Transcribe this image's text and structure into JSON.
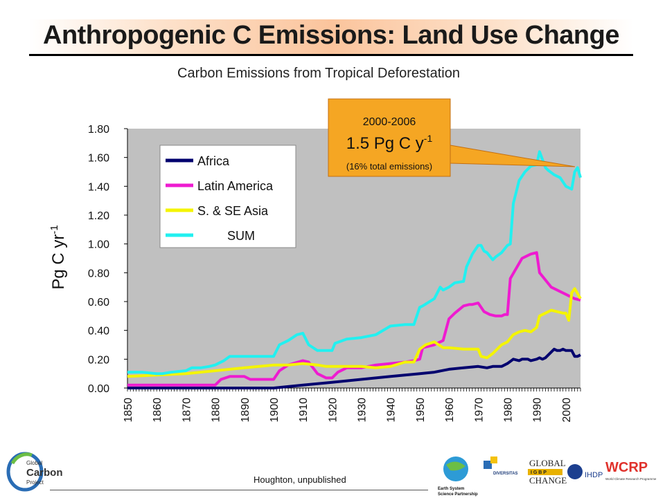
{
  "slide": {
    "title": "Anthropogenic C Emissions: Land Use Change",
    "source": "Houghton, unpublished"
  },
  "callout": {
    "period": "2000-2006",
    "value": "1.5 Pg C y",
    "value_sup": "-1",
    "note": "(16% total emissions)",
    "color": "#f5a623"
  },
  "logos": {
    "gcp_line1": "Global",
    "gcp_line2": "Carbon",
    "gcp_line3": "Project",
    "essp_line1": "Earth System",
    "essp_line2": "Science Partnership",
    "diversitas": "DIVERSITAS",
    "global_change_1": "GLOBAL",
    "global_change_2": "CHANGE",
    "igbp": "I G B P",
    "ihdp": "IHDP",
    "wcrp": "WCRP",
    "wcrp_sub": "World Climate Research Programme"
  },
  "chart_data": {
    "type": "line",
    "title": "Carbon Emissions from Tropical Deforestation",
    "ylabel": "Pg C yr",
    "ylabel_sup": "-1",
    "xlim": [
      1850,
      2005
    ],
    "ylim": [
      0,
      1.8
    ],
    "yticks": [
      "0.00",
      "0.20",
      "0.40",
      "0.60",
      "0.80",
      "1.00",
      "1.20",
      "1.40",
      "1.60",
      "1.80"
    ],
    "xticks": [
      "1850",
      "1860",
      "1870",
      "1880",
      "1890",
      "1900",
      "1910",
      "1920",
      "1930",
      "1940",
      "1950",
      "1960",
      "1970",
      "1980",
      "1990",
      "2000"
    ],
    "grid": false,
    "plot_background": "#c0c0c0",
    "legend_position": "top-left",
    "series": [
      {
        "name": "Africa",
        "color": "#00006e",
        "x": [
          1850,
          1900,
          1905,
          1910,
          1915,
          1920,
          1925,
          1930,
          1935,
          1940,
          1945,
          1950,
          1955,
          1960,
          1965,
          1970,
          1973,
          1975,
          1978,
          1980,
          1982,
          1984,
          1985,
          1987,
          1988,
          1990,
          1991,
          1992,
          1993,
          1995,
          1996,
          1997,
          1998,
          1999,
          2000,
          2002,
          2003,
          2004,
          2005
        ],
        "y": [
          0.0,
          0.0,
          0.01,
          0.02,
          0.03,
          0.04,
          0.05,
          0.06,
          0.07,
          0.08,
          0.09,
          0.1,
          0.11,
          0.13,
          0.14,
          0.15,
          0.14,
          0.15,
          0.15,
          0.17,
          0.2,
          0.19,
          0.2,
          0.2,
          0.19,
          0.2,
          0.21,
          0.2,
          0.21,
          0.25,
          0.27,
          0.26,
          0.26,
          0.27,
          0.26,
          0.26,
          0.22,
          0.22,
          0.23
        ]
      },
      {
        "name": "Latin America",
        "color": "#ee1bd0",
        "x": [
          1850,
          1880,
          1882,
          1885,
          1890,
          1892,
          1895,
          1900,
          1902,
          1905,
          1910,
          1912,
          1915,
          1918,
          1920,
          1922,
          1925,
          1930,
          1935,
          1940,
          1945,
          1948,
          1950,
          1951,
          1955,
          1957,
          1958,
          1960,
          1962,
          1965,
          1967,
          1968,
          1970,
          1972,
          1974,
          1976,
          1978,
          1979,
          1980,
          1981,
          1985,
          1988,
          1990,
          1991,
          1995,
          2000,
          2002,
          2003,
          2005
        ],
        "y": [
          0.02,
          0.02,
          0.06,
          0.08,
          0.08,
          0.06,
          0.06,
          0.06,
          0.12,
          0.16,
          0.19,
          0.18,
          0.1,
          0.07,
          0.07,
          0.11,
          0.14,
          0.14,
          0.16,
          0.17,
          0.18,
          0.19,
          0.2,
          0.28,
          0.3,
          0.32,
          0.33,
          0.48,
          0.52,
          0.57,
          0.58,
          0.58,
          0.59,
          0.53,
          0.51,
          0.5,
          0.5,
          0.51,
          0.51,
          0.76,
          0.9,
          0.93,
          0.94,
          0.8,
          0.7,
          0.65,
          0.63,
          0.62,
          0.61
        ]
      },
      {
        "name": "S. & SE Asia",
        "color": "#f4f400",
        "x": [
          1850,
          1860,
          1870,
          1880,
          1890,
          1895,
          1900,
          1905,
          1910,
          1915,
          1918,
          1920,
          1925,
          1930,
          1935,
          1940,
          1945,
          1948,
          1950,
          1952,
          1955,
          1958,
          1960,
          1965,
          1970,
          1971,
          1973,
          1975,
          1978,
          1980,
          1982,
          1984,
          1986,
          1988,
          1990,
          1991,
          1993,
          1995,
          1997,
          1999,
          2000,
          2001,
          2002,
          2003,
          2005
        ],
        "y": [
          0.08,
          0.09,
          0.1,
          0.12,
          0.14,
          0.15,
          0.16,
          0.16,
          0.17,
          0.16,
          0.15,
          0.15,
          0.15,
          0.15,
          0.14,
          0.15,
          0.18,
          0.18,
          0.27,
          0.3,
          0.32,
          0.28,
          0.28,
          0.27,
          0.27,
          0.22,
          0.21,
          0.24,
          0.3,
          0.32,
          0.37,
          0.39,
          0.4,
          0.39,
          0.42,
          0.5,
          0.52,
          0.54,
          0.53,
          0.52,
          0.52,
          0.47,
          0.66,
          0.69,
          0.62
        ]
      },
      {
        "name": "SUM",
        "color": "#22f0f0",
        "x": [
          1850,
          1855,
          1860,
          1862,
          1865,
          1870,
          1872,
          1875,
          1878,
          1880,
          1883,
          1885,
          1888,
          1890,
          1895,
          1898,
          1900,
          1902,
          1905,
          1908,
          1910,
          1912,
          1915,
          1918,
          1920,
          1921,
          1925,
          1930,
          1935,
          1940,
          1945,
          1948,
          1950,
          1951,
          1955,
          1957,
          1958,
          1960,
          1962,
          1965,
          1966,
          1968,
          1969,
          1970,
          1971,
          1972,
          1973,
          1975,
          1976,
          1978,
          1980,
          1981,
          1982,
          1984,
          1986,
          1988,
          1990,
          1991,
          1993,
          1994,
          1996,
          1998,
          2000,
          2002,
          2003,
          2004,
          2005
        ],
        "y": [
          0.11,
          0.11,
          0.1,
          0.1,
          0.11,
          0.12,
          0.14,
          0.14,
          0.15,
          0.16,
          0.19,
          0.22,
          0.22,
          0.22,
          0.22,
          0.22,
          0.22,
          0.3,
          0.33,
          0.37,
          0.38,
          0.3,
          0.26,
          0.26,
          0.26,
          0.31,
          0.34,
          0.35,
          0.37,
          0.43,
          0.44,
          0.44,
          0.56,
          0.57,
          0.62,
          0.7,
          0.68,
          0.7,
          0.73,
          0.74,
          0.84,
          0.93,
          0.96,
          0.99,
          0.99,
          0.95,
          0.94,
          0.89,
          0.91,
          0.94,
          0.99,
          1.0,
          1.28,
          1.44,
          1.5,
          1.54,
          1.55,
          1.64,
          1.53,
          1.51,
          1.48,
          1.46,
          1.4,
          1.38,
          1.5,
          1.53,
          1.46
        ]
      }
    ]
  }
}
